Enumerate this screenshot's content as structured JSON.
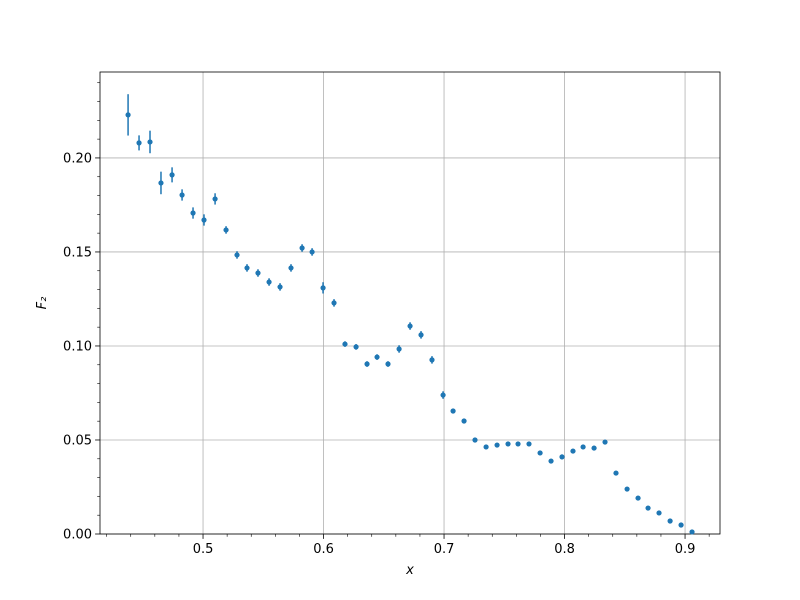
{
  "chart_data": {
    "type": "errorbar",
    "xlabel": "x",
    "ylabel": "F₂",
    "xlim": [
      0.4145,
      0.929
    ],
    "ylim": [
      0,
      0.2457
    ],
    "xticks": [
      0.5,
      0.6,
      0.7,
      0.8,
      0.9
    ],
    "yticks": [
      {
        "value": 0,
        "label": "0.00"
      },
      {
        "value": 0.05,
        "label": "0.05"
      },
      {
        "value": 0.1,
        "label": "0.10"
      },
      {
        "value": 0.15,
        "label": "0.15"
      },
      {
        "value": 0.2,
        "label": "0.20"
      }
    ],
    "xminorticks": [
      0.42,
      0.44,
      0.46,
      0.48,
      0.52,
      0.54,
      0.56,
      0.58,
      0.62,
      0.64,
      0.66,
      0.68,
      0.72,
      0.74,
      0.76,
      0.78,
      0.82,
      0.84,
      0.86,
      0.88,
      0.92
    ],
    "yminorticks": [
      0.01,
      0.02,
      0.03,
      0.04,
      0.06,
      0.07,
      0.08,
      0.09,
      0.11,
      0.12,
      0.13,
      0.14,
      0.16,
      0.17,
      0.18,
      0.19,
      0.21,
      0.22,
      0.23,
      0.24
    ],
    "grid": true,
    "series": [
      {
        "color": "#1f77b4",
        "x": [
          0.4378,
          0.4469,
          0.456,
          0.4651,
          0.4743,
          0.4826,
          0.4917,
          0.5008,
          0.51,
          0.5191,
          0.5282,
          0.5365,
          0.5456,
          0.5548,
          0.5639,
          0.573,
          0.5822,
          0.5905,
          0.5996,
          0.6087,
          0.6178,
          0.627,
          0.6361,
          0.6444,
          0.6535,
          0.6627,
          0.6718,
          0.6809,
          0.69,
          0.6992,
          0.7075,
          0.7166,
          0.7257,
          0.7349,
          0.744,
          0.7531,
          0.7614,
          0.7705,
          0.7797,
          0.7888,
          0.7979,
          0.807,
          0.8154,
          0.8245,
          0.8336,
          0.8427,
          0.8519,
          0.861,
          0.8693,
          0.8784,
          0.8876,
          0.8967,
          0.9058
        ],
        "values": [
          0.2229,
          0.208,
          0.2085,
          0.1867,
          0.191,
          0.1803,
          0.1707,
          0.167,
          0.1782,
          0.1617,
          0.1484,
          0.1415,
          0.1388,
          0.134,
          0.1314,
          0.1415,
          0.1521,
          0.15,
          0.1309,
          0.1229,
          0.101,
          0.0995,
          0.0904,
          0.0941,
          0.0904,
          0.0984,
          0.1106,
          0.1059,
          0.0926,
          0.0739,
          0.0654,
          0.0601,
          0.05,
          0.0463,
          0.0473,
          0.0479,
          0.0479,
          0.0479,
          0.0431,
          0.0388,
          0.041,
          0.0441,
          0.0463,
          0.0457,
          0.0489,
          0.0324,
          0.0239,
          0.0191,
          0.0138,
          0.0112,
          0.0069,
          0.0048,
          0.0011
        ],
        "errors": [
          0.011,
          0.004,
          0.006,
          0.006,
          0.004,
          0.003,
          0.003,
          0.003,
          0.003,
          0.002,
          0.002,
          0.002,
          0.002,
          0.002,
          0.002,
          0.002,
          0.002,
          0.002,
          0.003,
          0.002,
          0.0015,
          0.0015,
          0.0015,
          0.0015,
          0.0015,
          0.002,
          0.002,
          0.002,
          0.002,
          0.002,
          0.0012,
          0.0012,
          0.001,
          0.001,
          0.001,
          0.001,
          0.001,
          0.001,
          0.001,
          0.001,
          0.001,
          0.001,
          0.001,
          0.0012,
          0.0012,
          0.0008,
          0.0005,
          0.0005,
          0.0005,
          0.0005,
          0.0004,
          0.0004,
          0.0003
        ]
      }
    ]
  }
}
